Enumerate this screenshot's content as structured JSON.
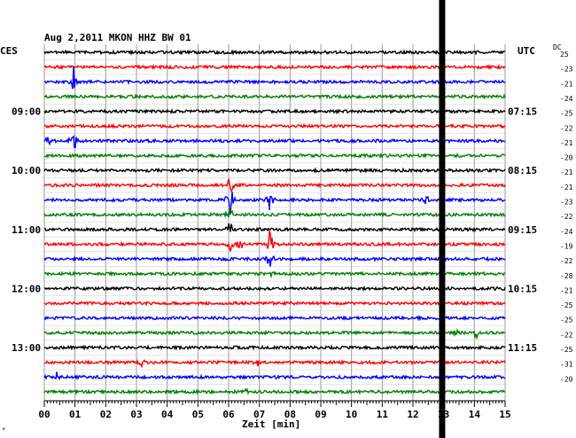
{
  "header": {
    "title": "Aug 2,2011   MKON HHZ BW 01",
    "left_zone": "CES",
    "right_zone": "UTC",
    "dc_label": "DC"
  },
  "chart_data": {
    "type": "line",
    "title": "Aug 2,2011   MKON HHZ BW 01",
    "xlabel": "Zeit [min]",
    "xlim": [
      0,
      15
    ],
    "x_ticks": [
      "00",
      "01",
      "02",
      "03",
      "04",
      "05",
      "06",
      "07",
      "08",
      "09",
      "10",
      "11",
      "12",
      "13",
      "14",
      "15"
    ],
    "trace_count": 24,
    "trace_colors": [
      "#000000",
      "#ff0000",
      "#0000ff",
      "#008000"
    ],
    "left_time_labels": [
      {
        "trace": 4,
        "label": "09:00"
      },
      {
        "trace": 8,
        "label": "10:00"
      },
      {
        "trace": 12,
        "label": "11:00"
      },
      {
        "trace": 16,
        "label": "12:00"
      },
      {
        "trace": 20,
        "label": "13:00"
      }
    ],
    "right_time_labels": [
      {
        "trace": 4,
        "label": "07:15"
      },
      {
        "trace": 8,
        "label": "08:15"
      },
      {
        "trace": 12,
        "label": "09:15"
      },
      {
        "trace": 16,
        "label": "10:15"
      },
      {
        "trace": 20,
        "label": "11:15"
      }
    ],
    "dc_offsets": [
      "25",
      "-23",
      "-21",
      "-24",
      "-25",
      "-22",
      "-21",
      "-20",
      "-21",
      "-21",
      "-23",
      "-22",
      "-24",
      "-19",
      "-22",
      "-28",
      "-21",
      "-25",
      "-25",
      "-22",
      "-25",
      "-31",
      "-20"
    ],
    "events": [
      {
        "trace": 2,
        "x": 0.95,
        "amp": 1.2
      },
      {
        "trace": 6,
        "x": 0.15,
        "amp": 0.5
      },
      {
        "trace": 6,
        "x": 0.95,
        "amp": 1.0
      },
      {
        "trace": 9,
        "x": 6.05,
        "amp": 0.9
      },
      {
        "trace": 10,
        "x": 6.05,
        "amp": 1.2
      },
      {
        "trace": 10,
        "x": 7.35,
        "amp": 1.0
      },
      {
        "trace": 10,
        "x": 12.45,
        "amp": 0.5
      },
      {
        "trace": 11,
        "x": 6.05,
        "amp": 0.7
      },
      {
        "trace": 12,
        "x": 6.05,
        "amp": 0.8
      },
      {
        "trace": 13,
        "x": 6.05,
        "amp": 0.9
      },
      {
        "trace": 13,
        "x": 6.35,
        "amp": 0.7
      },
      {
        "trace": 13,
        "x": 7.35,
        "amp": 1.2
      },
      {
        "trace": 14,
        "x": 7.35,
        "amp": 0.8
      },
      {
        "trace": 15,
        "x": 7.35,
        "amp": 0.5
      },
      {
        "trace": 19,
        "x": 13.35,
        "amp": 0.4
      },
      {
        "trace": 19,
        "x": 14.05,
        "amp": 0.6
      },
      {
        "trace": 21,
        "x": 3.15,
        "amp": 0.4
      },
      {
        "trace": 21,
        "x": 6.95,
        "amp": 0.3
      },
      {
        "trace": 22,
        "x": 0.4,
        "amp": 0.3
      },
      {
        "trace": 23,
        "x": 6.6,
        "amp": 0.3
      }
    ],
    "gap": {
      "x_start": 12.85,
      "x_end": 13.05
    },
    "grid": true
  }
}
